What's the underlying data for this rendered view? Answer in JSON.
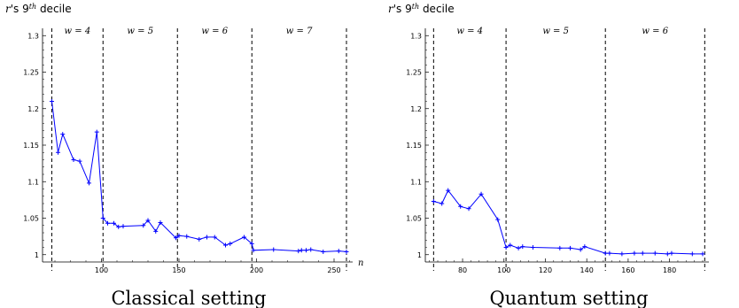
{
  "chart_data": [
    {
      "type": "line",
      "ylabel": "r's 9th decile",
      "xlabel": "n",
      "caption": "Classical setting",
      "xlim": [
        62,
        262
      ],
      "ylim": [
        0.99,
        1.31
      ],
      "xticks": [
        100,
        150,
        200,
        250
      ],
      "yticks": [
        1,
        1.05,
        1.1,
        1.15,
        1.2,
        1.25,
        1.3
      ],
      "ytick_labels": [
        "1",
        "1.05",
        "1.1",
        "1.15",
        "1.2",
        "1.25",
        "1.3"
      ],
      "dividers": [
        68,
        101,
        149,
        197,
        258
      ],
      "windows": [
        "w = 4",
        "w = 5",
        "w = 6",
        "w = 7"
      ],
      "color": "#0000ff",
      "x": [
        68,
        72,
        75,
        82,
        86,
        92,
        97,
        101,
        104,
        108,
        111,
        114,
        127,
        130,
        135,
        138,
        148,
        150,
        155,
        163,
        168,
        173,
        180,
        183,
        192,
        197,
        198,
        211,
        227,
        229,
        232,
        235,
        243,
        253,
        258
      ],
      "y": [
        1.21,
        1.14,
        1.165,
        1.13,
        1.128,
        1.098,
        1.168,
        1.05,
        1.043,
        1.043,
        1.038,
        1.039,
        1.04,
        1.047,
        1.032,
        1.044,
        1.023,
        1.026,
        1.025,
        1.021,
        1.024,
        1.024,
        1.013,
        1.015,
        1.024,
        1.015,
        1.006,
        1.007,
        1.005,
        1.006,
        1.006,
        1.007,
        1.004,
        1.005,
        1.004
      ]
    },
    {
      "type": "line",
      "ylabel": "r's 9th decile",
      "caption": "Quantum setting",
      "xlim": [
        62,
        199
      ],
      "ylim": [
        0.99,
        1.31
      ],
      "xticks": [
        80,
        100,
        120,
        140,
        160,
        180
      ],
      "yticks": [
        1,
        1.05,
        1.1,
        1.15,
        1.2,
        1.25,
        1.3
      ],
      "ytick_labels": [
        "1",
        "1.05",
        "1.1",
        "1.15",
        "1.2",
        "1.25",
        "1.3"
      ],
      "dividers": [
        66,
        101,
        149,
        197
      ],
      "windows": [
        "w = 4",
        "w = 5",
        "w = 6"
      ],
      "color": "#0000ff",
      "x": [
        66,
        70,
        73,
        79,
        83,
        89,
        97,
        101,
        103,
        107,
        109,
        114,
        127,
        132,
        137,
        139,
        149,
        151,
        157,
        163,
        167,
        173,
        179,
        181,
        191,
        196
      ],
      "y": [
        1.073,
        1.07,
        1.088,
        1.066,
        1.063,
        1.083,
        1.048,
        1.01,
        1.013,
        1.009,
        1.011,
        1.01,
        1.009,
        1.009,
        1.007,
        1.011,
        1.002,
        1.002,
        1.001,
        1.002,
        1.002,
        1.002,
        1.001,
        1.002,
        1.001,
        1.001
      ]
    }
  ]
}
